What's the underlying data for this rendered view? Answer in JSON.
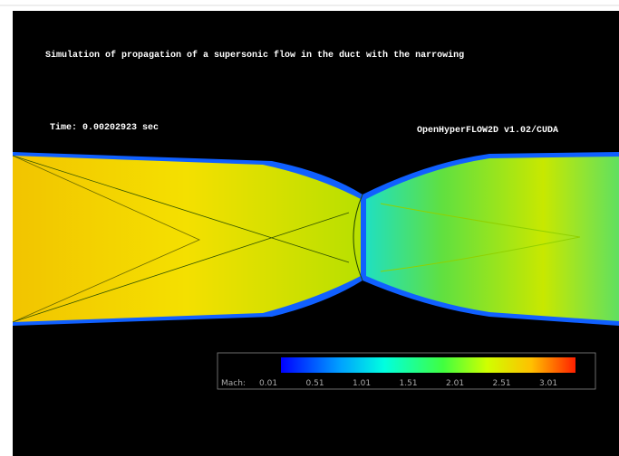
{
  "title": "Simulation of propagation of a supersonic flow in the duct with the narrowing",
  "time": "Time: 0.00202923 sec",
  "version": "OpenHyperFLOW2D v1.02/CUDA",
  "colorbar": {
    "label": "Mach:",
    "ticks": [
      "0.01",
      "0.51",
      "1.01",
      "1.51",
      "2.01",
      "2.51",
      "3.01"
    ]
  }
}
